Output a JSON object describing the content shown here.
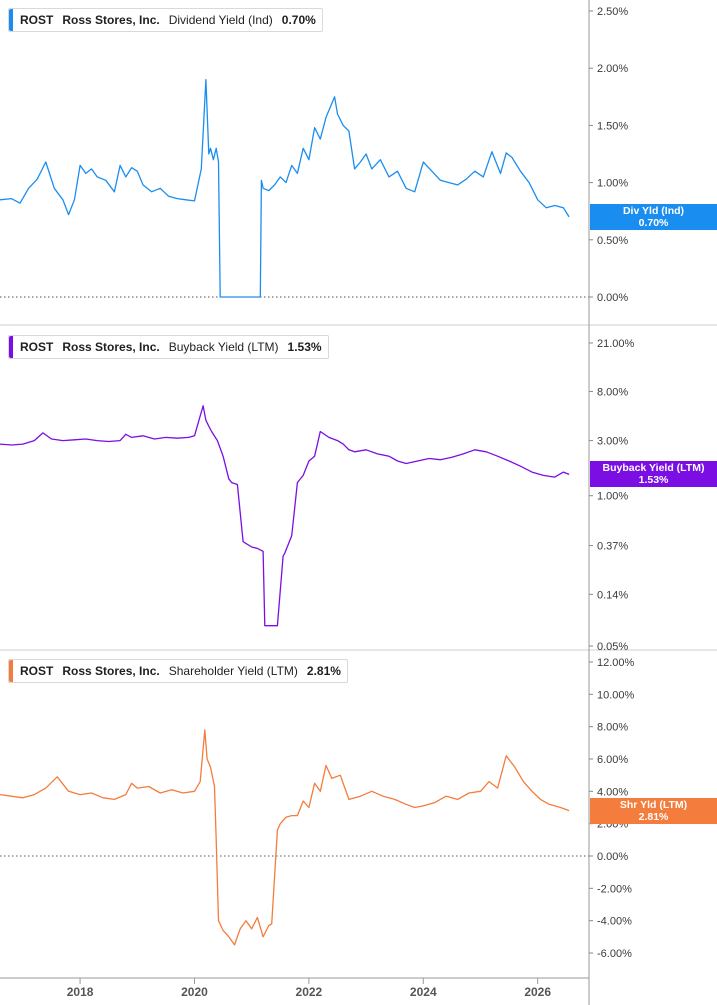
{
  "colors": {
    "dividend": "#1a8ef0",
    "buyback": "#7b0ee3",
    "shareholder": "#f47c3c"
  },
  "chart_data": [
    {
      "type": "line",
      "ticker": "ROST",
      "company": "Ross Stores, Inc.",
      "metric": "Dividend Yield (Ind)",
      "current": "0.70%",
      "tag_line1": "Div Yld (Ind)",
      "tag_line2": "0.70%",
      "scale": "linear",
      "ylim": [
        0,
        2.6
      ],
      "yticks": [
        {
          "value": 0,
          "label": "0.00%"
        },
        {
          "value": 0.5,
          "label": "0.50%"
        },
        {
          "value": 1.0,
          "label": "1.00%"
        },
        {
          "value": 1.5,
          "label": "1.50%"
        },
        {
          "value": 2.0,
          "label": "2.00%"
        },
        {
          "value": 2.5,
          "label": "2.50%"
        }
      ],
      "zero_line": true,
      "x": [
        2016.6,
        2016.8,
        2016.95,
        2017.1,
        2017.25,
        2017.4,
        2017.55,
        2017.7,
        2017.8,
        2017.9,
        2018.0,
        2018.1,
        2018.2,
        2018.3,
        2018.45,
        2018.6,
        2018.7,
        2018.8,
        2018.9,
        2019.0,
        2019.1,
        2019.25,
        2019.4,
        2019.55,
        2019.7,
        2019.85,
        2020.0,
        2020.12,
        2020.2,
        2020.25,
        2020.28,
        2020.33,
        2020.38,
        2020.42,
        2020.45,
        2021.15,
        2021.17,
        2021.2,
        2021.3,
        2021.4,
        2021.5,
        2021.6,
        2021.7,
        2021.8,
        2021.9,
        2022.0,
        2022.1,
        2022.2,
        2022.3,
        2022.45,
        2022.5,
        2022.6,
        2022.7,
        2022.8,
        2022.9,
        2023.0,
        2023.1,
        2023.25,
        2023.4,
        2023.55,
        2023.7,
        2023.85,
        2024.0,
        2024.15,
        2024.3,
        2024.45,
        2024.6,
        2024.75,
        2024.9,
        2025.05,
        2025.2,
        2025.35,
        2025.45,
        2025.55,
        2025.7,
        2025.85,
        2026.0,
        2026.15,
        2026.3,
        2026.45,
        2026.55
      ],
      "y": [
        0.85,
        0.86,
        0.82,
        0.95,
        1.03,
        1.18,
        0.95,
        0.85,
        0.72,
        0.85,
        1.15,
        1.08,
        1.12,
        1.05,
        1.02,
        0.92,
        1.15,
        1.05,
        1.13,
        1.1,
        0.98,
        0.92,
        0.95,
        0.88,
        0.86,
        0.85,
        0.84,
        1.12,
        1.9,
        1.25,
        1.3,
        1.2,
        1.3,
        1.18,
        0.0,
        0.0,
        1.02,
        0.95,
        0.93,
        0.98,
        1.05,
        1.0,
        1.15,
        1.08,
        1.3,
        1.2,
        1.48,
        1.38,
        1.57,
        1.75,
        1.6,
        1.5,
        1.45,
        1.12,
        1.18,
        1.25,
        1.12,
        1.2,
        1.05,
        1.1,
        0.95,
        0.92,
        1.18,
        1.1,
        1.02,
        1.0,
        0.98,
        1.03,
        1.1,
        1.05,
        1.27,
        1.08,
        1.26,
        1.22,
        1.1,
        1.0,
        0.85,
        0.78,
        0.8,
        0.78,
        0.7
      ]
    },
    {
      "type": "line",
      "ticker": "ROST",
      "company": "Ross Stores, Inc.",
      "metric": "Buyback Yield (LTM)",
      "current": "1.53%",
      "tag_line1": "Buyback Yield (LTM)",
      "tag_line2": "1.53%",
      "scale": "log",
      "yticks": [
        {
          "value": 0.05,
          "label": "0.05%"
        },
        {
          "value": 0.14,
          "label": "0.14%"
        },
        {
          "value": 0.37,
          "label": "0.37%"
        },
        {
          "value": 1.0,
          "label": "1.00%"
        },
        {
          "value": 3.0,
          "label": "3.00%"
        },
        {
          "value": 8.0,
          "label": "8.00%"
        },
        {
          "value": 21.0,
          "label": "21.00%"
        }
      ],
      "zero_line": false,
      "x": [
        2016.6,
        2016.8,
        2017.0,
        2017.2,
        2017.35,
        2017.5,
        2017.7,
        2017.9,
        2018.1,
        2018.3,
        2018.5,
        2018.7,
        2018.8,
        2018.9,
        2019.1,
        2019.3,
        2019.5,
        2019.7,
        2019.9,
        2020.0,
        2020.15,
        2020.2,
        2020.25,
        2020.3,
        2020.4,
        2020.5,
        2020.6,
        2020.65,
        2020.75,
        2020.85,
        2021.0,
        2021.1,
        2021.2,
        2021.23,
        2021.4,
        2021.45,
        2021.55,
        2021.58,
        2021.7,
        2021.8,
        2021.9,
        2022.0,
        2022.1,
        2022.2,
        2022.35,
        2022.5,
        2022.6,
        2022.7,
        2022.8,
        2023.0,
        2023.2,
        2023.4,
        2023.55,
        2023.7,
        2023.9,
        2024.1,
        2024.3,
        2024.5,
        2024.7,
        2024.9,
        2025.1,
        2025.3,
        2025.5,
        2025.7,
        2025.9,
        2026.1,
        2026.3,
        2026.45,
        2026.55
      ],
      "y": [
        2.8,
        2.75,
        2.8,
        3.0,
        3.5,
        3.1,
        3.0,
        3.05,
        3.1,
        3.0,
        2.95,
        3.0,
        3.4,
        3.2,
        3.3,
        3.1,
        3.2,
        3.15,
        3.2,
        3.3,
        6.0,
        4.5,
        4.0,
        3.6,
        3.0,
        2.2,
        1.4,
        1.3,
        1.25,
        0.4,
        0.36,
        0.35,
        0.33,
        0.075,
        0.075,
        0.075,
        0.3,
        0.32,
        0.45,
        1.3,
        1.5,
        2.0,
        2.2,
        3.6,
        3.2,
        3.0,
        2.8,
        2.5,
        2.4,
        2.5,
        2.3,
        2.2,
        2.0,
        1.9,
        2.0,
        2.1,
        2.05,
        2.15,
        2.3,
        2.5,
        2.4,
        2.2,
        2.0,
        1.8,
        1.6,
        1.5,
        1.45,
        1.6,
        1.53
      ]
    },
    {
      "type": "line",
      "ticker": "ROST",
      "company": "Ross Stores, Inc.",
      "metric": "Shareholder Yield (LTM)",
      "current": "2.81%",
      "tag_line1": "Shr Yld (LTM)",
      "tag_line2": "2.81%",
      "scale": "linear",
      "ylim": [
        -7,
        12.5
      ],
      "yticks": [
        {
          "value": -6,
          "label": "-6.00%"
        },
        {
          "value": -4,
          "label": "-4.00%"
        },
        {
          "value": -2,
          "label": "-2.00%"
        },
        {
          "value": 0,
          "label": "0.00%"
        },
        {
          "value": 2,
          "label": "2.00%"
        },
        {
          "value": 4,
          "label": "4.00%"
        },
        {
          "value": 6,
          "label": "6.00%"
        },
        {
          "value": 8,
          "label": "8.00%"
        },
        {
          "value": 10,
          "label": "10.00%"
        },
        {
          "value": 12,
          "label": "12.00%"
        }
      ],
      "zero_line": true,
      "x": [
        2016.6,
        2016.8,
        2017.0,
        2017.2,
        2017.4,
        2017.6,
        2017.8,
        2018.0,
        2018.2,
        2018.4,
        2018.6,
        2018.8,
        2018.9,
        2019.0,
        2019.2,
        2019.4,
        2019.6,
        2019.8,
        2020.0,
        2020.1,
        2020.18,
        2020.22,
        2020.28,
        2020.35,
        2020.38,
        2020.42,
        2020.5,
        2020.6,
        2020.7,
        2020.8,
        2020.9,
        2021.0,
        2021.1,
        2021.2,
        2021.3,
        2021.35,
        2021.45,
        2021.5,
        2021.55,
        2021.6,
        2021.7,
        2021.8,
        2021.9,
        2022.0,
        2022.1,
        2022.2,
        2022.3,
        2022.4,
        2022.55,
        2022.7,
        2022.9,
        2023.1,
        2023.3,
        2023.5,
        2023.7,
        2023.85,
        2024.0,
        2024.2,
        2024.4,
        2024.6,
        2024.8,
        2025.0,
        2025.15,
        2025.3,
        2025.45,
        2025.6,
        2025.75,
        2025.9,
        2026.05,
        2026.2,
        2026.4,
        2026.55
      ],
      "y": [
        3.8,
        3.7,
        3.6,
        3.8,
        4.2,
        4.9,
        4.0,
        3.8,
        3.9,
        3.6,
        3.5,
        3.8,
        4.5,
        4.2,
        4.3,
        3.9,
        4.1,
        3.9,
        4.0,
        4.6,
        7.8,
        6.0,
        5.5,
        4.3,
        1.0,
        -4.0,
        -4.6,
        -5.0,
        -5.5,
        -4.5,
        -4.0,
        -4.5,
        -3.8,
        -5.0,
        -4.3,
        -4.2,
        1.6,
        2.0,
        2.2,
        2.4,
        2.5,
        2.5,
        3.4,
        3.0,
        4.5,
        4.0,
        5.6,
        4.8,
        5.0,
        3.5,
        3.7,
        4.0,
        3.7,
        3.5,
        3.2,
        3.0,
        3.1,
        3.3,
        3.7,
        3.5,
        3.9,
        4.0,
        4.6,
        4.2,
        6.2,
        5.5,
        4.6,
        4.0,
        3.5,
        3.2,
        3.0,
        2.81
      ]
    }
  ],
  "x_axis": {
    "ticks": [
      {
        "value": 2018,
        "label": "2018"
      },
      {
        "value": 2020,
        "label": "2020"
      },
      {
        "value": 2022,
        "label": "2022"
      },
      {
        "value": 2024,
        "label": "2024"
      },
      {
        "value": 2026,
        "label": "2026"
      }
    ]
  }
}
